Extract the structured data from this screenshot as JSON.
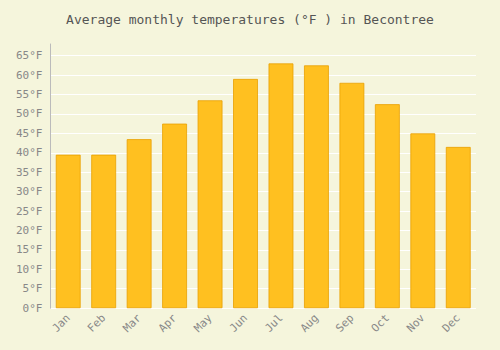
{
  "chart_data": {
    "type": "bar",
    "title": "Average monthly temperatures (°F ) in Becontree",
    "categories": [
      "Jan",
      "Feb",
      "Mar",
      "Apr",
      "May",
      "Jun",
      "Jul",
      "Aug",
      "Sep",
      "Oct",
      "Nov",
      "Dec"
    ],
    "values": [
      39.5,
      39.5,
      43.5,
      47.5,
      53.5,
      59.0,
      63.0,
      62.5,
      58.0,
      52.5,
      45.0,
      41.5
    ],
    "color": "#FFC020",
    "ylim": [
      0,
      68
    ],
    "yticks": [
      {
        "value": 0,
        "label": "0°F"
      },
      {
        "value": 5,
        "label": "5°F"
      },
      {
        "value": 10,
        "label": "10°F"
      },
      {
        "value": 15,
        "label": "15°F"
      },
      {
        "value": 20,
        "label": "20°F"
      },
      {
        "value": 25,
        "label": "25°F"
      },
      {
        "value": 30,
        "label": "30°F"
      },
      {
        "value": 35,
        "label": "35°F"
      },
      {
        "value": 40,
        "label": "40°F"
      },
      {
        "value": 45,
        "label": "45°F"
      },
      {
        "value": 50,
        "label": "50°F"
      },
      {
        "value": 55,
        "label": "55°F"
      },
      {
        "value": 60,
        "label": "60°F"
      },
      {
        "value": 65,
        "label": "65°F"
      }
    ],
    "grid": true
  }
}
